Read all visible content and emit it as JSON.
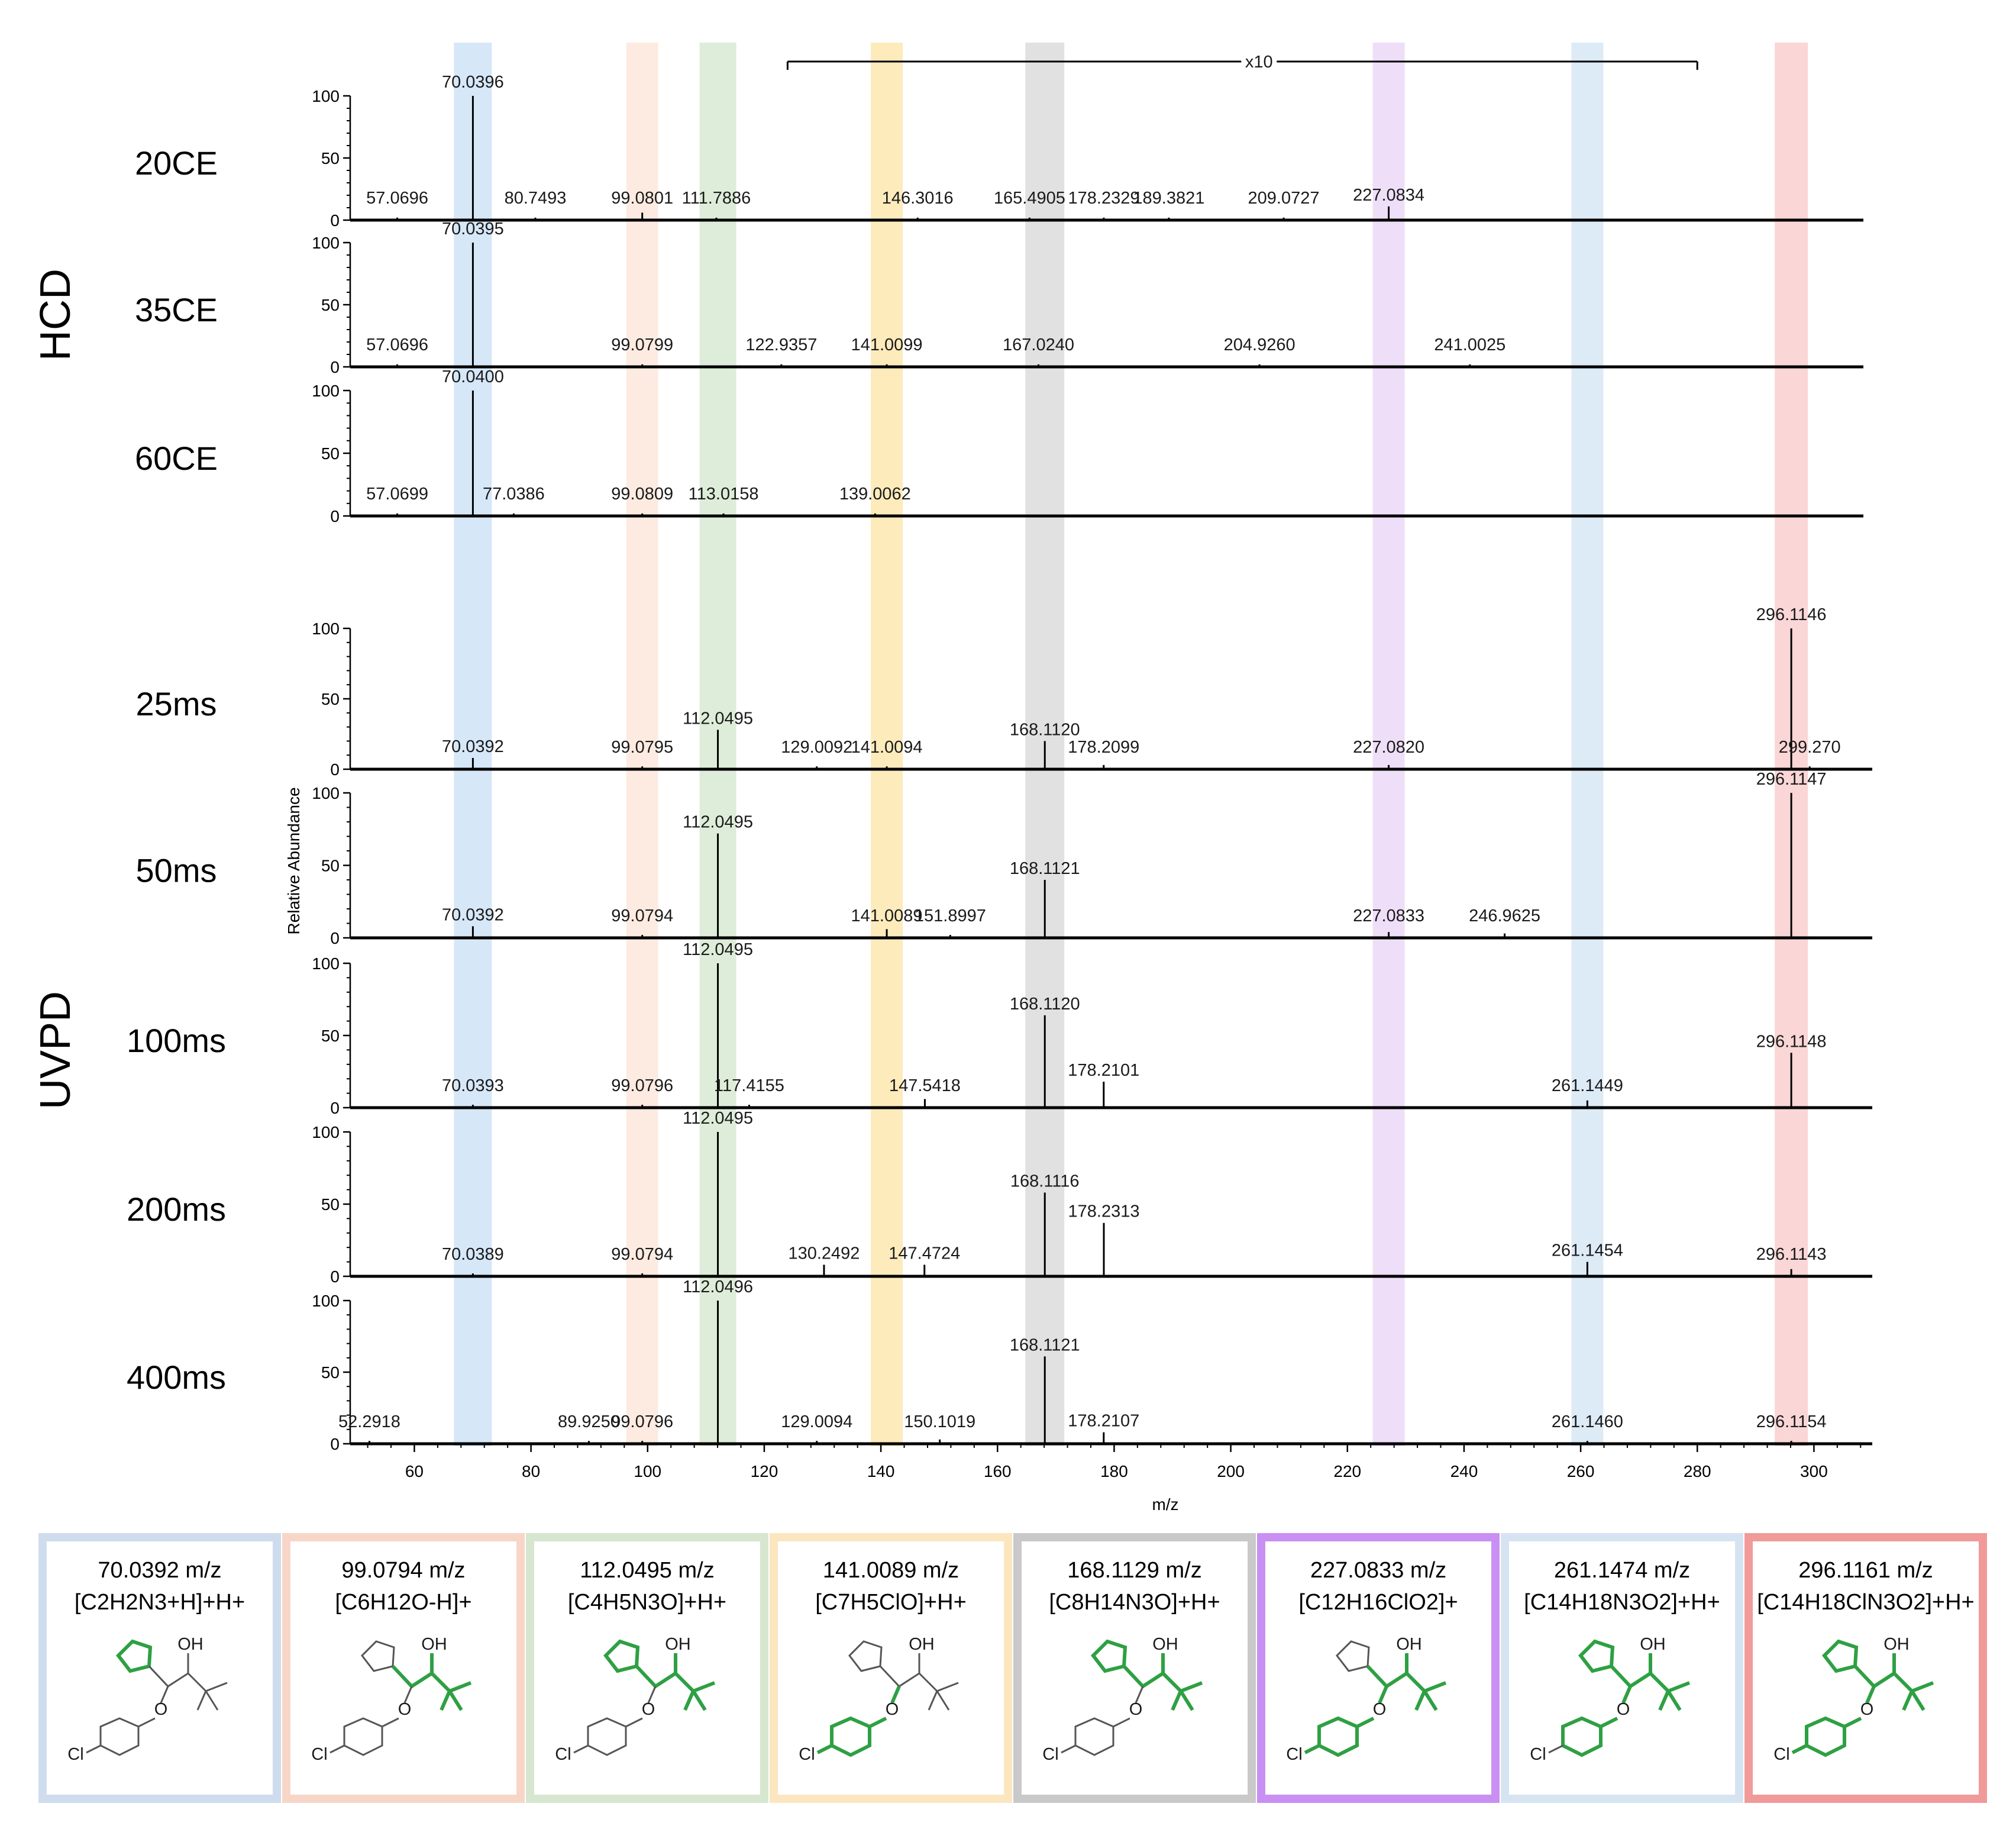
{
  "chart_data": {
    "type": "mass-spectra-stack",
    "xlabel": "m/z",
    "ylabel": "Relative Abundance",
    "xlim": [
      49,
      310
    ],
    "x_ticks": [
      "60",
      "80",
      "100",
      "120",
      "140",
      "160",
      "180",
      "200",
      "220",
      "240",
      "260",
      "280",
      "300"
    ],
    "y_ticks": [
      "0",
      "50",
      "100"
    ],
    "zoom_annotation": "x10",
    "zoom_range": [
      124,
      280
    ],
    "groups": [
      {
        "label": "HCD",
        "panels": [
          "20CE",
          "35CE",
          "60CE"
        ]
      },
      {
        "label": "UVPD",
        "panels": [
          "25ms",
          "50ms",
          "100ms",
          "200ms",
          "400ms"
        ]
      }
    ],
    "highlight_bands": [
      {
        "mz": 70.04,
        "color": "#cfe3f7"
      },
      {
        "mz": 99.08,
        "color": "#fde8dc"
      },
      {
        "mz": 112.05,
        "color": "#d8ead2"
      },
      {
        "mz": 141.01,
        "color": "#fde7b0"
      },
      {
        "mz": 168.11,
        "color": "#dcdcdc"
      },
      {
        "mz": 227.08,
        "color": "#ecd8f7"
      },
      {
        "mz": 261.15,
        "color": "#d7e8f6"
      },
      {
        "mz": 296.12,
        "color": "#f9cfcf"
      }
    ],
    "panels": [
      {
        "name": "20CE",
        "peaks": [
          {
            "mz": 57.0696,
            "y": 0,
            "label": "57.0696"
          },
          {
            "mz": 70.0396,
            "y": 100,
            "label": "70.0396"
          },
          {
            "mz": 80.7493,
            "y": 0,
            "label": "80.7493"
          },
          {
            "mz": 99.0801,
            "y": 6,
            "label": "99.0801"
          },
          {
            "mz": 111.7886,
            "y": 1,
            "label": "111.7886"
          },
          {
            "mz": 146.3016,
            "y": 1,
            "label": "146.3016"
          },
          {
            "mz": 165.4905,
            "y": 1,
            "label": "165.4905"
          },
          {
            "mz": 178.2329,
            "y": 2,
            "label": "178.2329"
          },
          {
            "mz": 189.3821,
            "y": 1,
            "label": "189.3821"
          },
          {
            "mz": 209.0727,
            "y": 2,
            "label": "209.0727"
          },
          {
            "mz": 227.0834,
            "y": 11,
            "label": "227.0834"
          }
        ]
      },
      {
        "name": "35CE",
        "peaks": [
          {
            "mz": 57.0696,
            "y": 0,
            "label": "57.0696"
          },
          {
            "mz": 70.0395,
            "y": 100,
            "label": "70.0395"
          },
          {
            "mz": 99.0799,
            "y": 1,
            "label": "99.0799"
          },
          {
            "mz": 122.9357,
            "y": 0,
            "label": "122.9357"
          },
          {
            "mz": 141.0099,
            "y": 1,
            "label": "141.0099"
          },
          {
            "mz": 167.024,
            "y": 0,
            "label": "167.0240"
          },
          {
            "mz": 204.926,
            "y": 0,
            "label": "204.9260"
          },
          {
            "mz": 241.0025,
            "y": 0,
            "label": "241.0025"
          }
        ]
      },
      {
        "name": "60CE",
        "peaks": [
          {
            "mz": 57.0699,
            "y": 0,
            "label": "57.0699"
          },
          {
            "mz": 70.04,
            "y": 100,
            "label": "70.0400"
          },
          {
            "mz": 77.0386,
            "y": 0,
            "label": "77.0386"
          },
          {
            "mz": 99.0809,
            "y": 0,
            "label": "99.0809"
          },
          {
            "mz": 113.0158,
            "y": 0,
            "label": "113.0158"
          },
          {
            "mz": 139.0062,
            "y": 1,
            "label": "139.0062"
          }
        ]
      },
      {
        "name": "25ms",
        "peaks": [
          {
            "mz": 70.0392,
            "y": 8,
            "label": "70.0392"
          },
          {
            "mz": 99.0795,
            "y": 0,
            "label": "99.0795"
          },
          {
            "mz": 112.0495,
            "y": 28,
            "label": "112.0495"
          },
          {
            "mz": 129.0092,
            "y": 0,
            "label": "129.0092"
          },
          {
            "mz": 141.0094,
            "y": 1,
            "label": "141.0094"
          },
          {
            "mz": 168.112,
            "y": 20,
            "label": "168.1120"
          },
          {
            "mz": 178.2099,
            "y": 3,
            "label": "178.2099"
          },
          {
            "mz": 227.082,
            "y": 3,
            "label": "227.0820"
          },
          {
            "mz": 296.1146,
            "y": 100,
            "label": "296.1146"
          },
          {
            "mz": 299.27,
            "y": 1,
            "label": "299.270"
          }
        ]
      },
      {
        "name": "50ms",
        "peaks": [
          {
            "mz": 70.0392,
            "y": 8,
            "label": "70.0392"
          },
          {
            "mz": 99.0794,
            "y": 0,
            "label": "99.0794"
          },
          {
            "mz": 112.0495,
            "y": 72,
            "label": "112.0495"
          },
          {
            "mz": 141.0089,
            "y": 6,
            "label": "141.0089"
          },
          {
            "mz": 151.8997,
            "y": 1,
            "label": "151.8997"
          },
          {
            "mz": 168.1121,
            "y": 40,
            "label": "168.1121"
          },
          {
            "mz": 227.0833,
            "y": 4,
            "label": "227.0833"
          },
          {
            "mz": 246.9625,
            "y": 3,
            "label": "246.9625"
          },
          {
            "mz": 296.1147,
            "y": 100,
            "label": "296.1147"
          }
        ]
      },
      {
        "name": "100ms",
        "peaks": [
          {
            "mz": 70.0393,
            "y": 1,
            "label": "70.0393"
          },
          {
            "mz": 99.0796,
            "y": 0,
            "label": "99.0796"
          },
          {
            "mz": 112.0495,
            "y": 100,
            "label": "112.0495"
          },
          {
            "mz": 117.4155,
            "y": 0,
            "label": "117.4155"
          },
          {
            "mz": 147.5418,
            "y": 6,
            "label": "147.5418"
          },
          {
            "mz": 168.112,
            "y": 64,
            "label": "168.1120"
          },
          {
            "mz": 178.2101,
            "y": 18,
            "label": "178.2101"
          },
          {
            "mz": 261.1449,
            "y": 5,
            "label": "261.1449"
          },
          {
            "mz": 296.1148,
            "y": 38,
            "label": "296.1148"
          }
        ]
      },
      {
        "name": "200ms",
        "peaks": [
          {
            "mz": 70.0389,
            "y": 0,
            "label": "70.0389"
          },
          {
            "mz": 99.0794,
            "y": 0,
            "label": "99.0794"
          },
          {
            "mz": 112.0495,
            "y": 100,
            "label": "112.0495"
          },
          {
            "mz": 130.2492,
            "y": 8,
            "label": "130.2492"
          },
          {
            "mz": 147.4724,
            "y": 8,
            "label": "147.4724"
          },
          {
            "mz": 168.1116,
            "y": 58,
            "label": "168.1116"
          },
          {
            "mz": 178.2313,
            "y": 37,
            "label": "178.2313"
          },
          {
            "mz": 261.1454,
            "y": 10,
            "label": "261.1454"
          },
          {
            "mz": 296.1143,
            "y": 5,
            "label": "296.1143"
          }
        ]
      },
      {
        "name": "400ms",
        "peaks": [
          {
            "mz": 52.2918,
            "y": 0,
            "label": "52.2918"
          },
          {
            "mz": 89.925,
            "y": 0,
            "label": "89.9250"
          },
          {
            "mz": 99.0796,
            "y": 0,
            "label": "99.0796"
          },
          {
            "mz": 112.0496,
            "y": 100,
            "label": "112.0496"
          },
          {
            "mz": 129.0094,
            "y": 0,
            "label": "129.0094"
          },
          {
            "mz": 150.1019,
            "y": 3,
            "label": "150.1019"
          },
          {
            "mz": 168.1121,
            "y": 61,
            "label": "168.1121"
          },
          {
            "mz": 178.2107,
            "y": 8,
            "label": "178.2107"
          },
          {
            "mz": 261.146,
            "y": 0,
            "label": "261.1460"
          },
          {
            "mz": 296.1154,
            "y": 0,
            "label": "296.1154"
          }
        ]
      }
    ],
    "fragments": [
      {
        "mz_text": "70.0392 m/z",
        "formula": "[C2H2N3+H]+H+",
        "color": "#cfdcee",
        "bg": "#ffffff",
        "hl": "triazole"
      },
      {
        "mz_text": "99.0794 m/z",
        "formula": "[C6H12O-H]+",
        "color": "#f7d6c8",
        "bg": "#ffffff",
        "hl": "tbutyl"
      },
      {
        "mz_text": "112.0495 m/z",
        "formula": "[C4H5N3O]+H+",
        "color": "#d6e6cf",
        "bg": "#ffffff",
        "hl": "triazole-oh"
      },
      {
        "mz_text": "141.0089 m/z",
        "formula": "[C7H5ClO]+H+",
        "color": "#fbe6c0",
        "bg": "#ffffff",
        "hl": "chlorophenoxy"
      },
      {
        "mz_text": "168.1129 m/z",
        "formula": "[C8H14N3O]+H+",
        "color": "#c9c9c9",
        "bg": "#ffffff",
        "hl": "triazole-tbutyl"
      },
      {
        "mz_text": "227.0833 m/z",
        "formula": "[C12H16ClO2]+",
        "color": "#c98ff2",
        "bg": "#ffffff",
        "hl": "no-triazole"
      },
      {
        "mz_text": "261.1474 m/z",
        "formula": "[C14H18N3O2]+H+",
        "color": "#d6e4f2",
        "bg": "#ffffff",
        "hl": "no-cl"
      },
      {
        "mz_text": "296.1161 m/z",
        "formula": "[C14H18ClN3O2]+H+",
        "color": "#f09a9a",
        "bg": "#ffffff",
        "hl": "all"
      }
    ]
  }
}
